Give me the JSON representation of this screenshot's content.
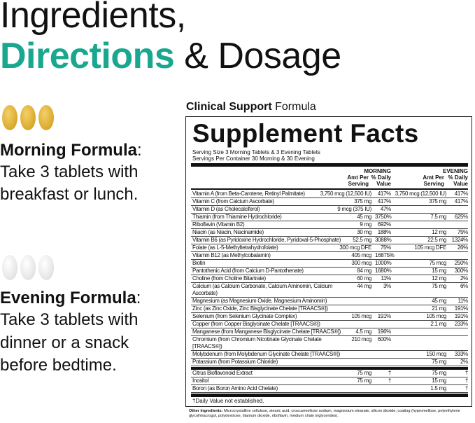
{
  "heading": {
    "line1": "Ingredients,",
    "line2_accent": "Directions",
    "line2_rest": " & Dosage",
    "accent_color": "#19a88f"
  },
  "morning": {
    "tablet_color": "#e0b23a",
    "tablet_count": 3,
    "title": "Morning Formula",
    "colon": ":",
    "lines": [
      "Take 3 tablets with",
      "breakfast or lunch."
    ]
  },
  "evening": {
    "tablet_color": "#e8e8ea",
    "tablet_count": 3,
    "title": "Evening Formula",
    "colon": ":",
    "lines": [
      "Take 3 tablets with",
      "dinner or a snack",
      "before bedtime."
    ]
  },
  "formula": {
    "bold": "Clinical Support",
    "rest": " Formula"
  },
  "facts": {
    "title": "Supplement Facts",
    "serving_size": "Serving Size 3 Morning Tablets & 3 Evening Tablets",
    "servings": "Servings Per Container 30 Morning & 30 Evening",
    "morning_label": "MORNING",
    "evening_label": "EVENING",
    "amt_label_1": "Amt Per",
    "amt_label_2": "Serving",
    "dv_label_1": "% Daily",
    "dv_label_2": "Value",
    "rows": [
      [
        "Vitamin A (from Beta-Carotene, Retinyl Palmitate)",
        "3,750 mcg (12,500 IU)",
        "417%",
        "3,750 mcg (12,500 IU)",
        "417%"
      ],
      [
        "Vitamin C (from Calcium Ascorbate)",
        "375 mg",
        "417%",
        "375 mg",
        "417%"
      ],
      [
        "Vitamin D (as Cholecalciferol)",
        "9 mcg (375 IU)",
        "47%",
        "",
        ""
      ],
      [
        "Thiamin (from Thiamine Hydrochloride)",
        "45 mg",
        "3750%",
        "7.5 mg",
        "625%"
      ],
      [
        "Riboflavin (Vitamin B2)",
        "9 mg",
        "692%",
        "",
        ""
      ],
      [
        "Niacin (as Niacin, Niacinamide)",
        "30 mg",
        "188%",
        "12 mg",
        "75%"
      ],
      [
        "Vitamin B6 (as Pyridoxine Hydrochloride, Pyridoxal-5-Phosphate)",
        "52.5 mg",
        "3088%",
        "22.5 mg",
        "1324%"
      ],
      [
        "Folate (as L-5-Methyltetrahydrofolate)",
        "300 mcg DFE",
        "75%",
        "105 mcg DFE",
        "26%"
      ],
      [
        "Vitamin B12 (as Methylcobalamin)",
        "405 mcg",
        "16875%",
        "",
        ""
      ],
      [
        "Biotin",
        "300 mcg",
        "1000%",
        "75 mcg",
        "250%"
      ],
      [
        "Pantothenic Acid (from Calcium D-Pantothenate)",
        "84 mg",
        "1680%",
        "15 mg",
        "300%"
      ],
      [
        "Choline (from Choline Bitartrate)",
        "60 mg",
        "11%",
        "12 mg",
        "2%"
      ],
      [
        "Calcium (as Calcium Carbonate, Calcium Aminomin, Calcium Ascorbate)",
        "44 mg",
        "3%",
        "75 mg",
        "6%"
      ],
      [
        "Magnesium (as Magnesium Oxide, Magnesium Aminomin)",
        "",
        "",
        "45 mg",
        "11%"
      ],
      [
        "Zinc (as Zinc Oxide, Zinc Bisglycinate Chelate [TRAACS®])",
        "",
        "",
        "21 mg",
        "191%"
      ],
      [
        "Selenium (from Selenium Glycinate Complex)",
        "105 mcg",
        "191%",
        "105 mcg",
        "191%"
      ],
      [
        "Copper (from Copper Bisglycinate Chelate [TRAACS®])",
        "",
        "",
        "2.1 mg",
        "233%"
      ],
      [
        "Manganese (from Manganese Bisglycinate Chelate [TRAACS®])",
        "4.5 mg",
        "196%",
        "",
        ""
      ],
      [
        "Chromium (from Chromium Nicotinate Glycinate Chelate [TRAACS®])",
        "210 mcg",
        "600%",
        "",
        ""
      ],
      [
        "Molybdenum (from Molybdenum Glycinate Chelate [TRAACS®])",
        "",
        "",
        "150 mcg",
        "333%"
      ],
      [
        "Potassium (from Potassium Chloride)",
        "",
        "",
        "75 mg",
        "2%"
      ]
    ],
    "other_rows": [
      [
        "Citrus Bioflavonoid Extract",
        "75 mg",
        "†",
        "75 mg",
        "†"
      ],
      [
        "Inositol",
        "75 mg",
        "†",
        "15 mg",
        "†"
      ],
      [
        "Boron (as Boron Amino Acid Chelate)",
        "",
        "",
        "1.5 mg",
        "†"
      ]
    ],
    "footnote": "†Daily Value not established.",
    "other_label": "Other Ingredients:",
    "other_text": " Microcrystalline cellulose, stearic acid, croscarmellose sodium, magnesium stearate, silicon dioxide, coating (hypromellose, polyethylene glycol/macrogol, polydextrose, titanium dioxide, riboflavin, medium chain triglycerides)."
  }
}
